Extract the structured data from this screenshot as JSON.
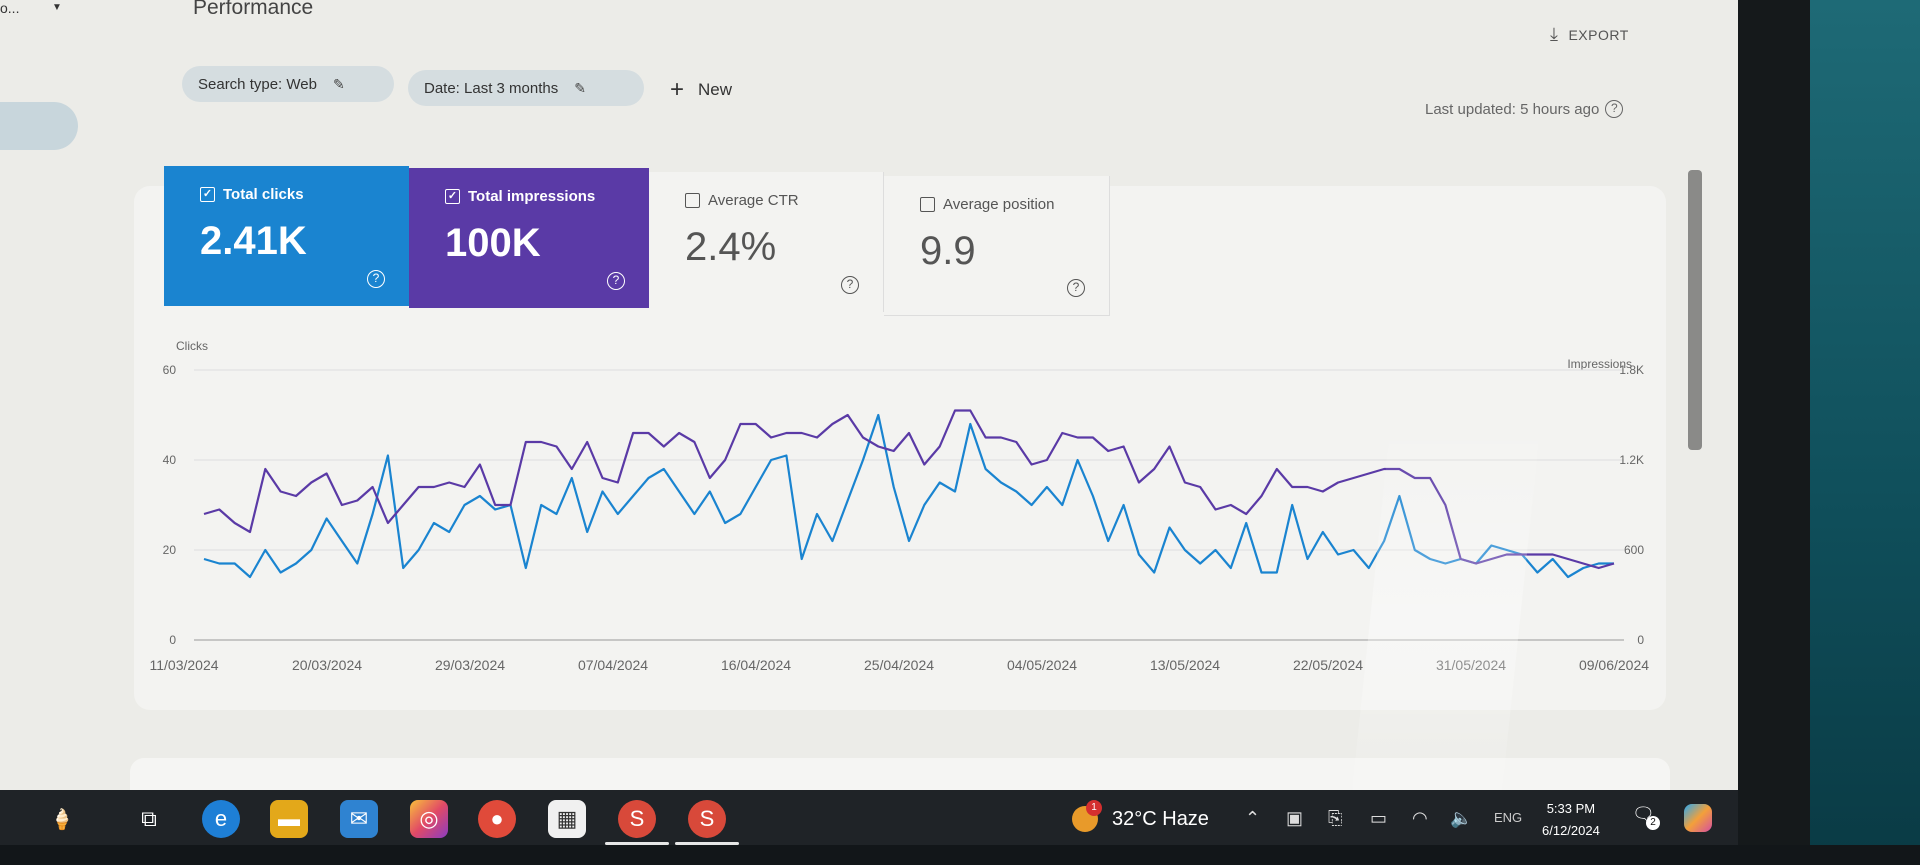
{
  "header": {
    "property_label": "o...",
    "page_title": "Performance",
    "export_label": "EXPORT",
    "last_updated": "Last updated: 5 hours ago"
  },
  "filters": {
    "search_type": "Search type: Web",
    "date": "Date: Last 3 months",
    "new_label": "New"
  },
  "metrics": [
    {
      "label": "Total clicks",
      "value": "2.41K",
      "checked": true,
      "color": "#1a84d0"
    },
    {
      "label": "Total impressions",
      "value": "100K",
      "checked": true,
      "color": "#5a3aa6"
    },
    {
      "label": "Average CTR",
      "value": "2.4%",
      "checked": false
    },
    {
      "label": "Average position",
      "value": "9.9",
      "checked": false
    }
  ],
  "chart_data": {
    "type": "line",
    "ylabel_left": "Clicks",
    "ylabel_right": "Impressions",
    "left_ticks": [
      "60",
      "40",
      "20",
      "0"
    ],
    "right_ticks": [
      "1.8K",
      "1.2K",
      "600",
      "0"
    ],
    "x_ticks": [
      "11/03/2024",
      "20/03/2024",
      "29/03/2024",
      "07/04/2024",
      "16/04/2024",
      "25/04/2024",
      "04/05/2024",
      "13/05/2024",
      "22/05/2024",
      "31/05/2024",
      "09/06/2024"
    ],
    "ylim_left": [
      0,
      60
    ],
    "ylim_right": [
      0,
      1800
    ],
    "series": [
      {
        "axis": "left",
        "color": "#1a84d0",
        "values": [
          18,
          17,
          17,
          14,
          20,
          15,
          17,
          20,
          27,
          22,
          17,
          28,
          41,
          16,
          20,
          26,
          24,
          30,
          32,
          29,
          30,
          16,
          30,
          28,
          36,
          24,
          33,
          28,
          32,
          36,
          38,
          33,
          28,
          33,
          26,
          28,
          34,
          40,
          41,
          18,
          28,
          22,
          31,
          40,
          50,
          34,
          22,
          30,
          35,
          33,
          48,
          38,
          35,
          33,
          30,
          34,
          30,
          40,
          32,
          22,
          30,
          19,
          15,
          25,
          20,
          17,
          20,
          16,
          26,
          15,
          15,
          30,
          18,
          24,
          19,
          20,
          16,
          22,
          32,
          20,
          18,
          17,
          18,
          17,
          21,
          20,
          19,
          15,
          18,
          14,
          16,
          17,
          17
        ]
      },
      {
        "axis": "right",
        "color": "#5a3aa6",
        "values": [
          840,
          870,
          780,
          720,
          1140,
          990,
          960,
          1050,
          1110,
          900,
          930,
          1020,
          780,
          900,
          1020,
          1020,
          1050,
          1020,
          1170,
          900,
          900,
          1320,
          1320,
          1290,
          1140,
          1320,
          1080,
          1050,
          1380,
          1380,
          1290,
          1380,
          1320,
          1080,
          1200,
          1440,
          1440,
          1350,
          1380,
          1380,
          1350,
          1440,
          1500,
          1350,
          1290,
          1260,
          1380,
          1170,
          1290,
          1530,
          1530,
          1350,
          1350,
          1320,
          1170,
          1200,
          1380,
          1350,
          1350,
          1260,
          1290,
          1050,
          1140,
          1290,
          1050,
          1020,
          870,
          900,
          840,
          960,
          1140,
          1020,
          1020,
          990,
          1050,
          1080,
          1110,
          1140,
          1140,
          1080,
          1080,
          900,
          540,
          510,
          540,
          570,
          570,
          570,
          570,
          540,
          510,
          480,
          510
        ]
      }
    ],
    "grid": true,
    "legend": "none"
  },
  "taskbar": {
    "weather": "32°C  Haze",
    "weather_alerts": "1",
    "lang": "ENG",
    "time": "5:33 PM",
    "date": "6/12/2024",
    "notifications": "2"
  }
}
